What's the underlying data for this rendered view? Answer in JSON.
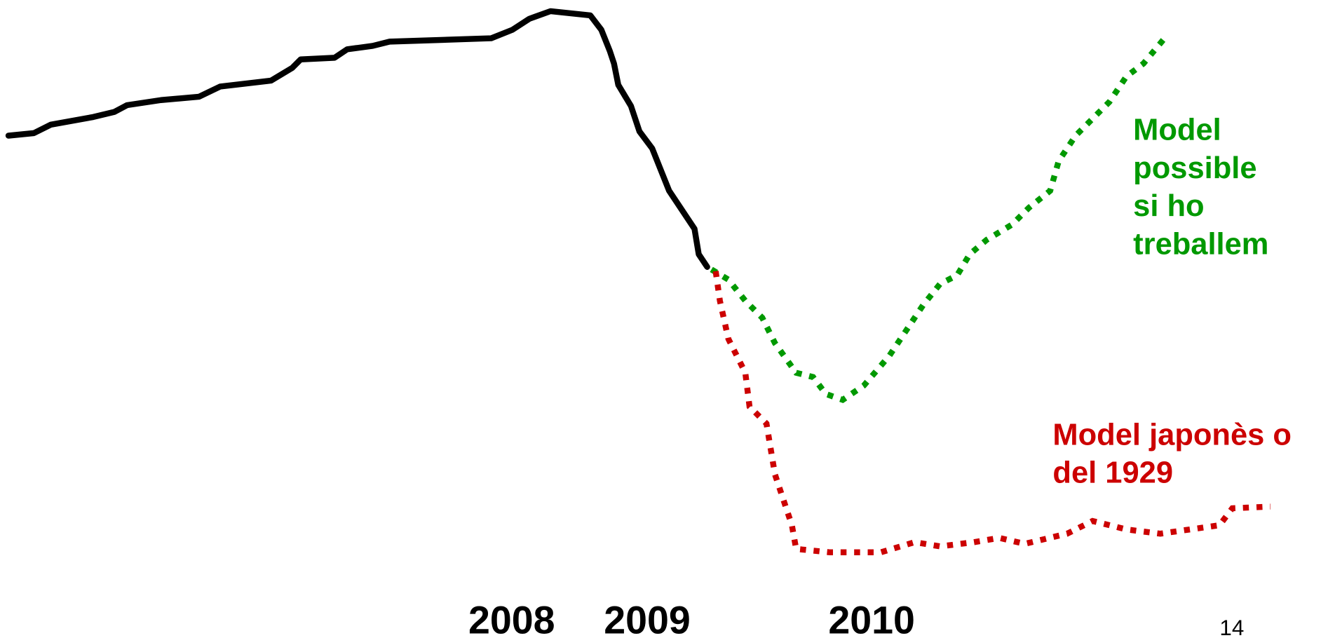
{
  "green_label": [
    "Model",
    "possible",
    "si ho",
    "treballem"
  ],
  "red_label": [
    "Model japonès o",
    "del 1929"
  ],
  "years": [
    "2008",
    "2009",
    "2010"
  ],
  "page_number": "14"
}
